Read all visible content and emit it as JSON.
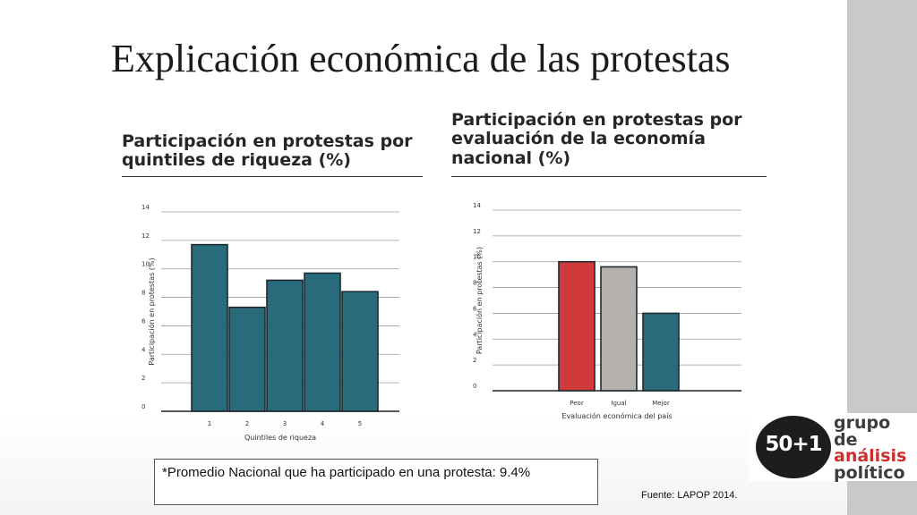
{
  "slide": {
    "title": "Explicación económica de las protestas",
    "note": "*Promedio Nacional que ha participado en una protesta: 9.4%",
    "source": "Fuente: LAPOP 2014."
  },
  "logo": {
    "number": "50+1",
    "line1": "grupo de",
    "line2": "análisis",
    "line3": "político",
    "colors": {
      "disc": "#1d1d1d",
      "accent": "#cf2e2e",
      "text": "#3d3d3d"
    }
  },
  "colors": {
    "teal": "#2a6b7b",
    "red": "#d03a3a",
    "gray": "#b5b1ae",
    "gridline": "#9a9a9a"
  },
  "chart_data": [
    {
      "type": "bar",
      "title": "Participación en protestas por quintiles de riqueza (%)",
      "xlabel": "Quintiles de riqueza",
      "ylabel": "Participación en protestas (%)",
      "ylim": [
        0,
        14
      ],
      "yticks": [
        0,
        2,
        4,
        6,
        8,
        10,
        12,
        14
      ],
      "grid": true,
      "categories": [
        "1",
        "2",
        "3",
        "4",
        "5"
      ],
      "values": [
        11.7,
        7.3,
        9.2,
        9.7,
        8.4
      ],
      "colors": [
        "#2a6b7b",
        "#2a6b7b",
        "#2a6b7b",
        "#2a6b7b",
        "#2a6b7b"
      ]
    },
    {
      "type": "bar",
      "title": "Participación en protestas por evaluación de la economía nacional (%)",
      "xlabel": "Evaluación económica del país",
      "ylabel": "Participación en protestas (%)",
      "ylim": [
        0,
        14
      ],
      "yticks": [
        0,
        2,
        4,
        6,
        8,
        10,
        12,
        14
      ],
      "grid": true,
      "categories": [
        "Peor",
        "Igual",
        "Mejor"
      ],
      "values": [
        10.0,
        9.6,
        6.0
      ],
      "colors": [
        "#d03a3a",
        "#b5b1ae",
        "#2a6b7b"
      ]
    }
  ]
}
